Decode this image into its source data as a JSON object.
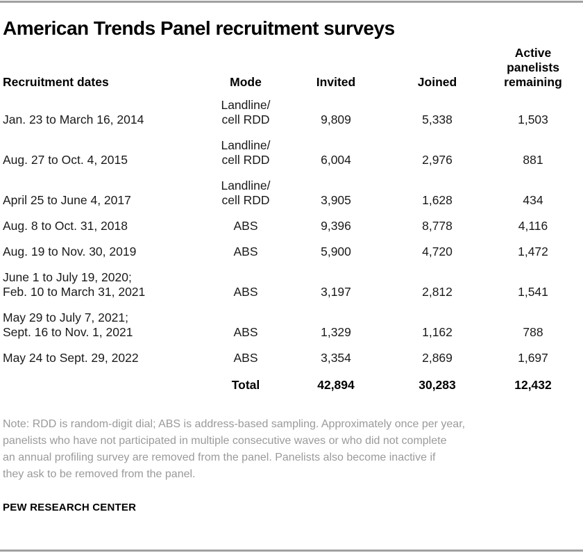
{
  "chart_data": {
    "type": "table",
    "title": "American Trends Panel recruitment surveys",
    "columns": [
      "Recruitment dates",
      "Mode",
      "Invited",
      "Joined",
      "Active\npanelists\nremaining"
    ],
    "rows": [
      {
        "dates": "Jan. 23 to March 16, 2014",
        "mode": "Landline/\ncell RDD",
        "invited": "9,809",
        "joined": "5,338",
        "active": "1,503"
      },
      {
        "dates": "Aug. 27 to Oct. 4, 2015",
        "mode": "Landline/\ncell RDD",
        "invited": "6,004",
        "joined": "2,976",
        "active": "881"
      },
      {
        "dates": "April 25 to June 4, 2017",
        "mode": "Landline/\ncell RDD",
        "invited": "3,905",
        "joined": "1,628",
        "active": "434"
      },
      {
        "dates": "Aug. 8 to Oct. 31, 2018",
        "mode": "ABS",
        "invited": "9,396",
        "joined": "8,778",
        "active": "4,116"
      },
      {
        "dates": "Aug. 19 to Nov. 30, 2019",
        "mode": "ABS",
        "invited": "5,900",
        "joined": "4,720",
        "active": "1,472"
      },
      {
        "dates": "June 1 to July 19, 2020;\nFeb. 10 to March 31, 2021",
        "mode": "ABS",
        "invited": "3,197",
        "joined": "2,812",
        "active": "1,541"
      },
      {
        "dates": "May 29 to July 7, 2021;\nSept. 16 to Nov. 1, 2021",
        "mode": "ABS",
        "invited": "1,329",
        "joined": "1,162",
        "active": "788"
      },
      {
        "dates": "May 24 to Sept. 29, 2022",
        "mode": "ABS",
        "invited": "3,354",
        "joined": "2,869",
        "active": "1,697"
      }
    ],
    "total_row": {
      "label": "Total",
      "invited": "42,894",
      "joined": "30,283",
      "active": "12,432"
    },
    "note": "Note: RDD is random-digit dial; ABS is address-based sampling. Approximately once per year,\npanelists who have not participated in multiple consecutive waves or who did not complete\nan annual profiling survey are removed from the panel. Panelists also become inactive if\nthey ask to be removed from the panel.",
    "source": "PEW RESEARCH CENTER",
    "layout_hints": {
      "grid": "off",
      "legend": "none"
    },
    "colors": {
      "rule_gray": "#a0a0a0",
      "note_text_gray": "#9a9a9a",
      "text_black": "#000000"
    }
  }
}
